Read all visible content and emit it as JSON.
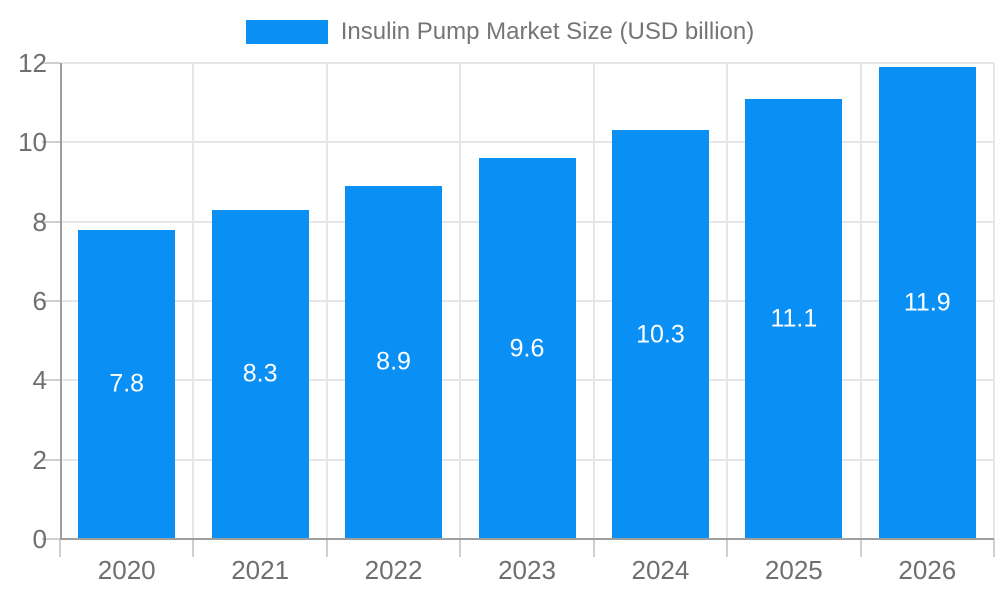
{
  "legend": {
    "label": "Insulin Pump Market Size (USD billion)",
    "swatch_color": "#0a90f5",
    "text_color": "#757575"
  },
  "chart_data": {
    "type": "bar",
    "title": "Insulin Pump Market Size (USD billion)",
    "categories": [
      "2020",
      "2021",
      "2022",
      "2023",
      "2024",
      "2025",
      "2026"
    ],
    "values": [
      7.8,
      8.3,
      8.9,
      9.6,
      10.3,
      11.1,
      11.9
    ],
    "bar_value_labels": [
      "7.8",
      "8.3",
      "8.9",
      "9.6",
      "10.3",
      "11.1",
      "11.9"
    ],
    "series_name": "Insulin Pump Market Size (USD billion)",
    "xlabel": "",
    "ylabel": "",
    "ylim": [
      0,
      12
    ],
    "yticks": [
      0,
      2,
      4,
      6,
      8,
      10,
      12
    ],
    "grid": true,
    "legend_position": "top",
    "colors": {
      "bar": "#0a90f5",
      "bar_label": "#ffffff",
      "axis_text": "#6f6f6f",
      "axis_line": "#9e9e9e",
      "tick_mark": "#cfcfcf",
      "gridline": "#e6e6e6",
      "background": "#ffffff"
    }
  }
}
